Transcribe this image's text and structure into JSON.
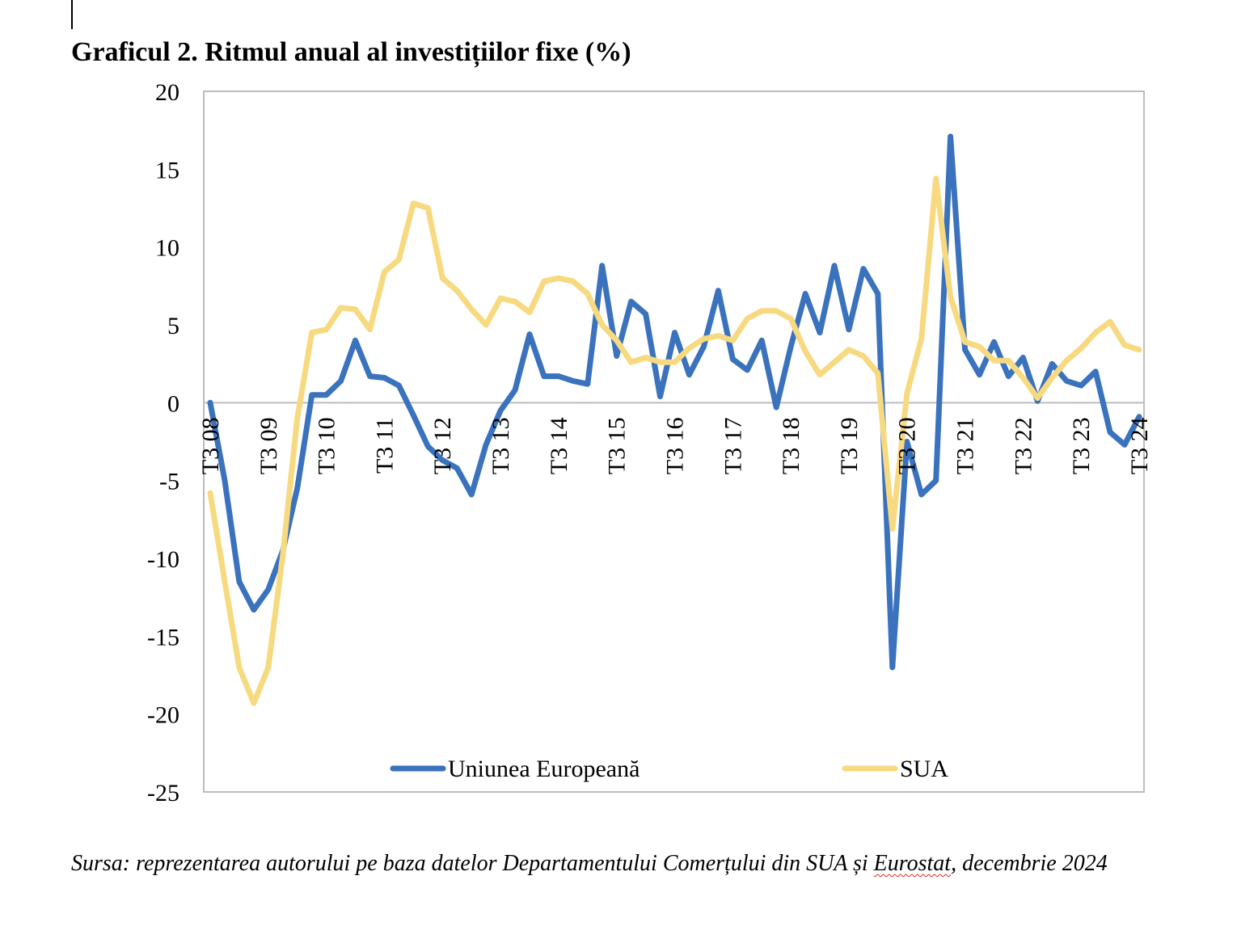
{
  "title": "Graficul 2. Ritmul anual al investițiilor fixe (%)",
  "source": {
    "before": "Sursa: reprezentarea autorului pe baza datelor Departamentului Comerțului din SUA și ",
    "flagged_word": "Eurostat",
    "after": ", decembrie 2024"
  },
  "chart_data": {
    "type": "line",
    "title": "Graficul 2. Ritmul anual al investițiilor fixe (%)",
    "xlabel": "",
    "ylabel": "",
    "ylim": [
      -25,
      20
    ],
    "yticks": [
      "20",
      "15",
      "10",
      "5",
      "0",
      "-5",
      "-10",
      "-15",
      "-20",
      "-25"
    ],
    "ytick_values": [
      20,
      15,
      10,
      5,
      0,
      -5,
      -10,
      -15,
      -20,
      -25
    ],
    "x_tick_labels": [
      "T3 08",
      "T3 09",
      "T3 10",
      "T3 11",
      "T3 12",
      "T3 13",
      "T3 14",
      "T3 15",
      "T3 16",
      "T3 17",
      "T3 18",
      "T3 19",
      "T3 20",
      "T3 21",
      "T3 22",
      "T3 23",
      "T3 24"
    ],
    "n_points": 65,
    "tick_every": 4,
    "grid": false,
    "legend_position": "bottom-center",
    "series": [
      {
        "name": "Uniunea Europeană",
        "color": "#3A72BE",
        "values": [
          0,
          -5,
          -11.5,
          -13.3,
          -12,
          -9.5,
          -5.5,
          0.5,
          0.5,
          1.4,
          4,
          1.7,
          1.6,
          1.1,
          -0.8,
          -2.8,
          -3.7,
          -4.2,
          -5.9,
          -2.7,
          -0.5,
          0.8,
          4.4,
          1.7,
          1.7,
          1.4,
          1.2,
          8.8,
          3,
          6.5,
          5.7,
          0.4,
          4.5,
          1.8,
          3.6,
          7.2,
          2.8,
          2.1,
          4,
          -0.3,
          3.6,
          7,
          4.5,
          8.8,
          4.7,
          8.6,
          7,
          -17,
          -2.5,
          -5.9,
          -5,
          17.1,
          3.4,
          1.8,
          3.9,
          1.7,
          2.9,
          0.1,
          2.5,
          1.4,
          1.1,
          2,
          -1.9,
          -2.7,
          -0.9
        ]
      },
      {
        "name": "SUA",
        "color": "#F7D980",
        "values": [
          -5.8,
          -11.5,
          -17,
          -19.3,
          -17,
          -9.8,
          -1,
          4.5,
          4.7,
          6.1,
          6,
          4.7,
          8.4,
          9.2,
          12.8,
          12.5,
          8,
          7.2,
          6,
          5,
          6.7,
          6.5,
          5.8,
          7.8,
          8,
          7.8,
          7,
          5,
          4,
          2.6,
          2.9,
          2.6,
          2.6,
          3.5,
          4.1,
          4.3,
          4,
          5.4,
          5.9,
          5.9,
          5.4,
          3.3,
          1.8,
          2.6,
          3.4,
          3,
          1.9,
          -8.1,
          0.6,
          4.1,
          14.4,
          6.8,
          3.9,
          3.6,
          2.7,
          2.7,
          1.6,
          0.3,
          1.6,
          2.7,
          3.5,
          4.5,
          5.2,
          3.7,
          3.4
        ]
      }
    ]
  }
}
